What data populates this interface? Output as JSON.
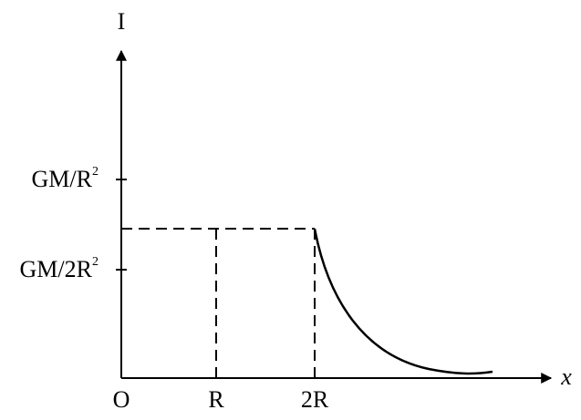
{
  "axes": {
    "y_label": "I",
    "x_label": "x",
    "origin": "O"
  },
  "x_marks": [
    "R",
    "2R"
  ],
  "y_marks": [
    {
      "base": "GM/R",
      "sup": "2"
    },
    {
      "base": "GM/2R",
      "sup": "2"
    }
  ]
}
